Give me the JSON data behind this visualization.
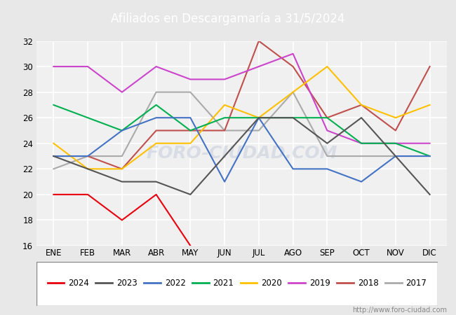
{
  "title": "Afiliados en Descargamaría a 31/5/2024",
  "header_bg": "#5b9bd5",
  "months": [
    "ENE",
    "FEB",
    "MAR",
    "ABR",
    "MAY",
    "JUN",
    "JUL",
    "AGO",
    "SEP",
    "OCT",
    "NOV",
    "DIC"
  ],
  "series": {
    "2024": {
      "color": "#e8000d",
      "data": [
        20,
        20,
        18,
        20,
        16,
        null,
        null,
        null,
        null,
        null,
        null,
        null
      ]
    },
    "2023": {
      "color": "#555555",
      "data": [
        23,
        22,
        21,
        21,
        20,
        23,
        26,
        26,
        24,
        26,
        23,
        20
      ]
    },
    "2022": {
      "color": "#4472c4",
      "data": [
        23,
        23,
        25,
        26,
        26,
        21,
        26,
        22,
        22,
        21,
        23,
        23
      ]
    },
    "2021": {
      "color": "#00b050",
      "data": [
        27,
        26,
        25,
        27,
        25,
        26,
        26,
        26,
        26,
        24,
        24,
        23
      ]
    },
    "2020": {
      "color": "#ffc000",
      "data": [
        24,
        22,
        22,
        24,
        24,
        27,
        26,
        28,
        30,
        27,
        26,
        27
      ]
    },
    "2019": {
      "color": "#cc44cc",
      "data": [
        30,
        30,
        28,
        30,
        29,
        29,
        30,
        31,
        25,
        24,
        24,
        24
      ]
    },
    "2018": {
      "color": "#c0504d",
      "data": [
        23,
        23,
        22,
        25,
        25,
        25,
        32,
        30,
        26,
        27,
        25,
        30
      ]
    },
    "2017": {
      "color": "#aaaaaa",
      "data": [
        22,
        23,
        23,
        28,
        28,
        25,
        25,
        28,
        23,
        23,
        23,
        23
      ]
    }
  },
  "ylim": [
    16,
    32
  ],
  "yticks": [
    16,
    18,
    20,
    22,
    24,
    26,
    28,
    30,
    32
  ],
  "bg_color": "#e8e8e8",
  "plot_bg": "#f0f0f0",
  "grid_color": "#ffffff",
  "url": "http://www.foro-ciudad.com",
  "legend_order": [
    "2024",
    "2023",
    "2022",
    "2021",
    "2020",
    "2019",
    "2018",
    "2017"
  ]
}
